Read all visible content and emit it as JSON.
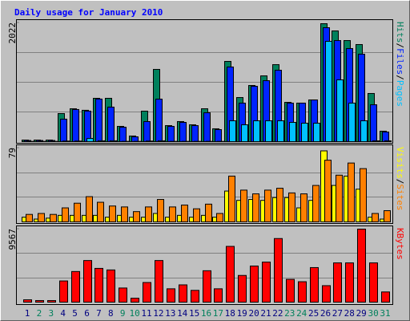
{
  "title": "Daily usage for January 2010",
  "legend_separator": "/",
  "chart_data": [
    {
      "type": "bar",
      "ylim": [
        0,
        2022
      ],
      "yticks": [
        2022
      ],
      "grid_divisions": 4,
      "series": [
        {
          "name": "Hits",
          "color": "#00805c",
          "values": [
            27,
            27,
            27,
            478,
            560,
            534,
            738,
            738,
            260,
            96,
            519,
            1230,
            273,
            342,
            287,
            560,
            219,
            1366,
            751,
            956,
            1120,
            1311,
            669,
            656,
            710,
            2008,
            1885,
            1721,
            1653,
            820,
            178
          ]
        },
        {
          "name": "Files",
          "color": "#0024ff",
          "values": [
            20,
            20,
            20,
            383,
            547,
            520,
            725,
            588,
            246,
            82,
            342,
            724,
            260,
            328,
            273,
            492,
            205,
            1271,
            656,
            943,
            1038,
            1216,
            656,
            656,
            710,
            1940,
            1721,
            1585,
            1489,
            628,
            164
          ]
        },
        {
          "name": "Pages",
          "color": "#00c0ff",
          "values": [
            5,
            5,
            5,
            10,
            10,
            55,
            15,
            15,
            5,
            5,
            10,
            15,
            5,
            5,
            5,
            5,
            5,
            355,
            287,
            355,
            355,
            355,
            328,
            314,
            314,
            1708,
            1052,
            656,
            355,
            14,
            14
          ]
        }
      ]
    },
    {
      "type": "bar",
      "ylim": [
        0,
        79
      ],
      "yticks": [
        79
      ],
      "grid_divisions": 3,
      "series": [
        {
          "name": "Visits",
          "color": "#ffff00",
          "values": [
            5,
            3,
            4,
            7,
            7,
            7,
            7,
            5,
            7,
            5,
            5,
            9,
            5,
            7,
            5,
            7,
            5,
            33,
            23,
            24,
            23,
            26,
            26,
            15,
            23,
            76,
            39,
            49,
            35,
            5,
            3
          ]
        },
        {
          "name": "Sites",
          "color": "#ff8000",
          "values": [
            8,
            9,
            8,
            15,
            20,
            27,
            21,
            17,
            16,
            11,
            16,
            24,
            16,
            18,
            14,
            19,
            9,
            49,
            34,
            30,
            34,
            36,
            31,
            30,
            39,
            66,
            50,
            63,
            57,
            9,
            12
          ]
        }
      ]
    },
    {
      "type": "bar",
      "ylim": [
        0,
        9567
      ],
      "yticks": [
        9567
      ],
      "grid_divisions": 3,
      "categories": [
        "1",
        "2",
        "3",
        "4",
        "5",
        "6",
        "7",
        "8",
        "9",
        "10",
        "11",
        "12",
        "13",
        "14",
        "15",
        "16",
        "17",
        "18",
        "19",
        "20",
        "21",
        "22",
        "23",
        "24",
        "25",
        "26",
        "27",
        "28",
        "29",
        "30",
        "31"
      ],
      "weekend": [
        "2",
        "3",
        "9",
        "10",
        "16",
        "17",
        "23",
        "24",
        "30",
        "31"
      ],
      "weekend_color": "#00805c",
      "label_color": "#000080",
      "series": [
        {
          "name": "KBytes",
          "color": "#ff0000",
          "values": [
            309,
            206,
            206,
            2777,
            4012,
            5452,
            4423,
            4218,
            1852,
            514,
            2572,
            5452,
            1749,
            2263,
            1543,
            4115,
            1749,
            7304,
            3498,
            4732,
            5246,
            8332,
            2983,
            2675,
            4526,
            2160,
            5143,
            5143,
            9567,
            5143,
            1337
          ]
        }
      ]
    }
  ]
}
